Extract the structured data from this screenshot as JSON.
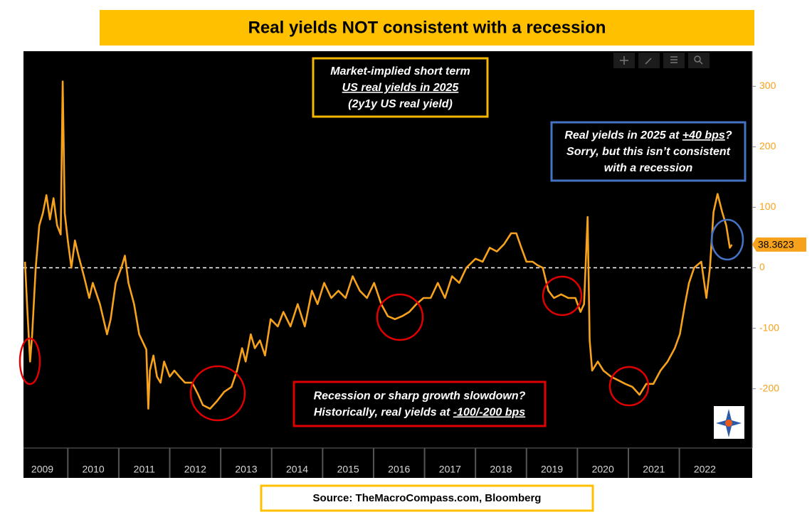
{
  "chart_data": {
    "type": "line",
    "title": "Real yields NOT consistent with a recession",
    "source": "Source: TheMacroCompass.com, Bloomberg",
    "x": [
      2009.16,
      2009.2,
      2009.26,
      2009.3,
      2009.37,
      2009.44,
      2009.51,
      2009.58,
      2009.65,
      2009.72,
      2009.79,
      2009.86,
      2009.9,
      2009.94,
      2010.0,
      2010.07,
      2010.14,
      2010.21,
      2010.32,
      2010.42,
      2010.49,
      2010.63,
      2010.77,
      2010.84,
      2010.94,
      2011.05,
      2011.12,
      2011.19,
      2011.3,
      2011.4,
      2011.54,
      2011.58,
      2011.61,
      2011.68,
      2011.75,
      2011.82,
      2011.89,
      2012.0,
      2012.09,
      2012.19,
      2012.3,
      2012.44,
      2012.56,
      2012.65,
      2012.79,
      2012.93,
      2013.07,
      2013.21,
      2013.32,
      2013.42,
      2013.49,
      2013.59,
      2013.67,
      2013.77,
      2013.87,
      2013.98,
      2014.12,
      2014.23,
      2014.37,
      2014.51,
      2014.65,
      2014.79,
      2014.9,
      2015.03,
      2015.17,
      2015.31,
      2015.45,
      2015.59,
      2015.73,
      2015.87,
      2016.01,
      2016.15,
      2016.28,
      2016.42,
      2016.56,
      2016.7,
      2016.84,
      2016.98,
      2017.12,
      2017.26,
      2017.4,
      2017.54,
      2017.68,
      2017.82,
      2018.0,
      2018.14,
      2018.28,
      2018.42,
      2018.56,
      2018.7,
      2018.8,
      2018.9,
      2019.0,
      2019.12,
      2019.22,
      2019.32,
      2019.43,
      2019.54,
      2019.68,
      2019.82,
      2019.96,
      2020.06,
      2020.13,
      2020.2,
      2020.24,
      2020.29,
      2020.4,
      2020.51,
      2020.66,
      2020.8,
      2020.94,
      2021.08,
      2021.22,
      2021.35,
      2021.49,
      2021.63,
      2021.77,
      2021.91,
      2022.01,
      2022.11,
      2022.19,
      2022.29,
      2022.43,
      2022.53,
      2022.6,
      2022.67,
      2022.75,
      2022.84,
      2022.92,
      2022.99,
      2023.03
    ],
    "series": [
      {
        "color": "#f7a21c",
        "values": [
          10,
          -60,
          -155,
          -110,
          0,
          70,
          90,
          120,
          80,
          115,
          70,
          55,
          308,
          90,
          45,
          0,
          45,
          20,
          -15,
          -50,
          -25,
          -60,
          -110,
          -85,
          -25,
          0,
          20,
          -25,
          -60,
          -110,
          -135,
          -233,
          -170,
          -145,
          -180,
          -190,
          -155,
          -180,
          -170,
          -180,
          -190,
          -190,
          -210,
          -227,
          -233,
          -220,
          -205,
          -197,
          -170,
          -133,
          -155,
          -110,
          -133,
          -120,
          -145,
          -85,
          -97,
          -73,
          -97,
          -60,
          -97,
          -38,
          -60,
          -25,
          -50,
          -38,
          -50,
          -14,
          -38,
          -50,
          -25,
          -60,
          -80,
          -85,
          -80,
          -73,
          -60,
          -50,
          -50,
          -25,
          -50,
          -14,
          -25,
          0,
          15,
          10,
          33,
          27,
          39,
          57,
          57,
          33,
          10,
          10,
          4,
          0,
          -38,
          -50,
          -44,
          -50,
          -50,
          -73,
          -60,
          84,
          -120,
          -170,
          -155,
          -170,
          -180,
          -186,
          -192,
          -197,
          -210,
          -192,
          -192,
          -170,
          -155,
          -133,
          -110,
          -60,
          -25,
          0,
          10,
          -50,
          0,
          92,
          122,
          92,
          70,
          33,
          38.3623
        ]
      }
    ],
    "xlim": [
      2009.13,
      2023.43
    ],
    "xticks": [
      2009,
      2010,
      2011,
      2012,
      2013,
      2014,
      2015,
      2016,
      2017,
      2018,
      2019,
      2020,
      2021,
      2022
    ],
    "ylim": [
      -298,
      358
    ],
    "yticks": [
      -200,
      -100,
      0,
      100,
      200,
      300
    ],
    "zero_line": true,
    "annotations": [
      {
        "color": "#f5b800",
        "lines": [
          [
            {
              "text": "Market-implied short term",
              "underline": false
            }
          ],
          [
            {
              "text": "US real yields in 2025",
              "underline": true
            }
          ],
          [
            {
              "text": "(2y1y US real yield)",
              "underline": false
            }
          ]
        ]
      },
      {
        "color": "#4472c4",
        "lines": [
          [
            {
              "text": "Real yields in 2025 at ",
              "underline": false
            },
            {
              "text": "+40 bps",
              "underline": true
            },
            {
              "text": "?",
              "underline": false
            }
          ],
          [
            {
              "text": "Sorry, but this isn’t consistent",
              "underline": false
            }
          ],
          [
            {
              "text": "with a recession",
              "underline": false
            }
          ]
        ]
      },
      {
        "color": "#e00000",
        "lines": [
          [
            {
              "text": "Recession or sharp growth slowdown?",
              "underline": false
            }
          ],
          [
            {
              "text": "Historically, real yields at ",
              "underline": false
            },
            {
              "text": "-100/-200 bps",
              "underline": true
            }
          ]
        ]
      }
    ]
  }
}
